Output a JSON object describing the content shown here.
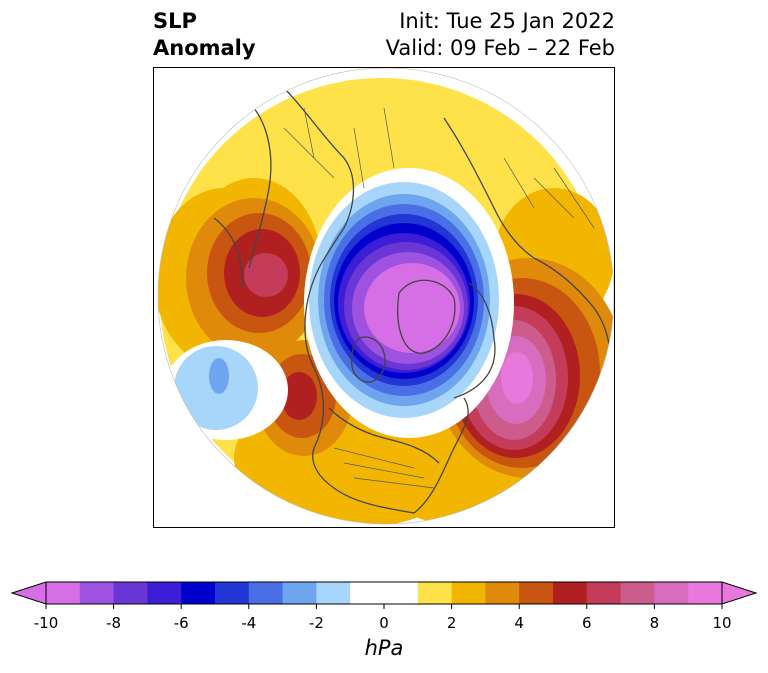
{
  "title": {
    "left_line1": "SLP",
    "left_line2": "Anomaly",
    "init": "Init: Tue 25 Jan 2022",
    "valid": "Valid: 09 Feb – 22 Feb"
  },
  "colorbar": {
    "unit": "hPa",
    "min": -10,
    "max": 10,
    "step": 1,
    "ticks": [
      -10,
      -8,
      -6,
      -4,
      -2,
      0,
      2,
      4,
      6,
      8,
      10
    ],
    "tick_labels": [
      "-10",
      "-8",
      "-6",
      "-4",
      "-2",
      "0",
      "2",
      "4",
      "6",
      "8",
      "10"
    ],
    "colors": [
      "#d66ee6",
      "#9f52e0",
      "#6a36d6",
      "#3e1dd6",
      "#0000cc",
      "#2236d6",
      "#4a6ee6",
      "#6fa4ee",
      "#a8d6fa",
      "#ffffff",
      "#ffffff",
      "#ffe14a",
      "#f2b600",
      "#e08a0c",
      "#c85510",
      "#b02020",
      "#c43c5a",
      "#cc5c8c",
      "#d86cbe",
      "#e878dc"
    ]
  },
  "map": {
    "projection": "polar-stereographic-north",
    "field": "SLP anomaly",
    "centers": [
      {
        "feature": "negative-anomaly-arctic",
        "value": -10
      },
      {
        "feature": "positive-anomaly-north-atlantic",
        "value": 10
      },
      {
        "feature": "positive-anomaly-north-pacific",
        "value": 7
      },
      {
        "feature": "positive-anomaly-siberia",
        "value": 7
      },
      {
        "feature": "negative-anomaly-central-asia",
        "value": -3
      }
    ]
  }
}
